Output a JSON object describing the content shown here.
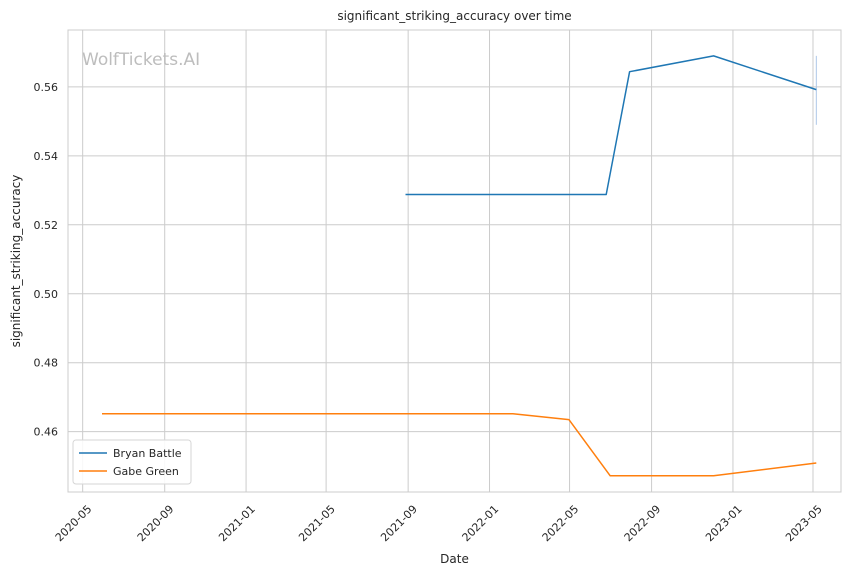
{
  "chart_data": {
    "type": "line",
    "title": "significant_striking_accuracy over time",
    "xlabel": "Date",
    "ylabel": "significant_striking_accuracy",
    "watermark": "WolfTickets.AI",
    "grid": true,
    "legend_position": "lower-left",
    "x_ticks": [
      "2020-05",
      "2020-09",
      "2021-01",
      "2021-05",
      "2021-09",
      "2022-01",
      "2022-05",
      "2022-09",
      "2023-01",
      "2023-05"
    ],
    "y_ticks": [
      0.46,
      0.48,
      0.5,
      0.52,
      0.54,
      0.56
    ],
    "xlim": [
      "2020-04-09",
      "2023-06-12"
    ],
    "ylim": [
      0.4425,
      0.5765
    ],
    "series": [
      {
        "name": "Bryan Battle",
        "color": "#1f77b4",
        "points": [
          {
            "x": "2021-08-28",
            "y": 0.5288
          },
          {
            "x": "2022-06-25",
            "y": 0.5288
          },
          {
            "x": "2022-07-30",
            "y": 0.5644
          },
          {
            "x": "2022-12-03",
            "y": 0.569
          },
          {
            "x": "2023-05-06",
            "y": 0.5592
          }
        ]
      },
      {
        "name": "Gabe Green",
        "color": "#ff7f0e",
        "points": [
          {
            "x": "2020-05-30",
            "y": 0.4652
          },
          {
            "x": "2022-02-05",
            "y": 0.4652
          },
          {
            "x": "2022-04-30",
            "y": 0.4635
          },
          {
            "x": "2022-07-01",
            "y": 0.4472
          },
          {
            "x": "2022-12-03",
            "y": 0.4472
          },
          {
            "x": "2023-05-06",
            "y": 0.4509
          }
        ]
      }
    ],
    "error_bar": {
      "x": "2023-05-06",
      "y_low": 0.549,
      "y_high": 0.569,
      "color": "#aec7e8"
    }
  }
}
